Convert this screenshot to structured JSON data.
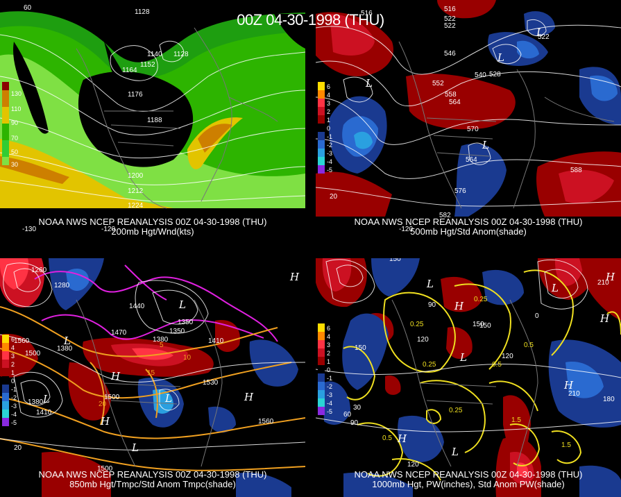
{
  "main_title": "00Z 04-30-1998 (THU)",
  "panels": [
    {
      "id": "tl",
      "caption_line1": "NOAA NWS NCEP REANALYSIS 00Z 04-30-1998 (THU)",
      "caption_line2": "200mb Hgt/Wnd(kts)",
      "legend": [
        "130",
        "110",
        "90",
        "70",
        "50",
        "30"
      ],
      "legend_colors": [
        "#8b0000",
        "#cd7f00",
        "#e2c400",
        "#2db400",
        "#33cc33",
        "#7fe044"
      ],
      "contour_labels": [
        "1128",
        "1140",
        "1128",
        "1152",
        "1164",
        "1176",
        "1188",
        "1200",
        "1212",
        "1224"
      ],
      "lon_labels": [
        "60",
        "-130",
        "-120"
      ]
    },
    {
      "id": "tr",
      "caption_line1": "NOAA NWS NCEP REANALYSIS 00Z 04-30-1998 (THU)",
      "caption_line2": "500mb Hgt/Std Anom(shade)",
      "legend": [
        "6",
        "4",
        "3",
        "2",
        "1",
        "0",
        "-1",
        "-2",
        "-3",
        "-4",
        "-5"
      ],
      "legend_colors": [
        "#ffdd00",
        "#ff8800",
        "#ff3344",
        "#cc1122",
        "#990000",
        "#000000",
        "#1a3a90",
        "#2a6ad0",
        "#2aa0e0",
        "#2ad4d4",
        "#8a2ae0"
      ],
      "contour_labels": [
        "516",
        "522",
        "522",
        "546",
        "540",
        "552",
        "558",
        "564",
        "570",
        "564",
        "576",
        "582",
        "588",
        "528",
        "516",
        "522"
      ],
      "lon_labels": [
        "20",
        "-120"
      ]
    },
    {
      "id": "bl",
      "caption_line1": "NOAA NWS NCEP REANALYSIS 00Z 04-30-1998 (THU)",
      "caption_line2": "850mb Hgt/Tmpc/Std Anom Tmpc(shade)",
      "legend": [
        "6",
        "4",
        "3",
        "2",
        "1",
        "0",
        "-1",
        "-2",
        "-3",
        "-4",
        "-5"
      ],
      "legend_colors": [
        "#ffdd00",
        "#ff8800",
        "#ff3344",
        "#cc1122",
        "#990000",
        "#000000",
        "#1a3a90",
        "#2a6ad0",
        "#2aa0e0",
        "#2ad4d4",
        "#8a2ae0"
      ],
      "contour_labels": [
        "1260",
        "1280",
        "1440",
        "1470",
        "1350",
        "1380",
        "1410",
        "1500",
        "1380",
        "1530",
        "1410",
        "1380",
        "1560",
        "1500",
        "1500",
        "10",
        "15",
        "5",
        "20",
        "1560",
        "1350"
      ],
      "lon_labels": [
        "20"
      ]
    },
    {
      "id": "br",
      "caption_line1": "NOAA NWS NCEP REANALYSIS 00Z 04-30-1998 (THU)",
      "caption_line2": "1000mb Hgt, PW(inches), Std Anom PW(shade)",
      "legend": [
        "6",
        "4",
        "3",
        "2",
        "1",
        "0",
        "-1",
        "-2",
        "-3",
        "-4",
        "-5"
      ],
      "legend_colors": [
        "#ffdd00",
        "#ff8800",
        "#ff3344",
        "#cc1122",
        "#990000",
        "#000000",
        "#1a3a90",
        "#2a6ad0",
        "#2aa0e0",
        "#2ad4d4",
        "#8a2ae0"
      ],
      "contour_labels": [
        "150",
        "90",
        "150",
        "120",
        "0.25",
        "0.25",
        "0.5",
        "120",
        "150",
        "0.25",
        "0.5",
        "180",
        "210",
        "30",
        "60",
        "90",
        "0.5",
        "1.5",
        "1.5",
        "120",
        "0.25",
        "0",
        "210",
        "150"
      ],
      "lon_labels": []
    }
  ],
  "pressure_symbols": {
    "high": "H",
    "low": "L"
  }
}
